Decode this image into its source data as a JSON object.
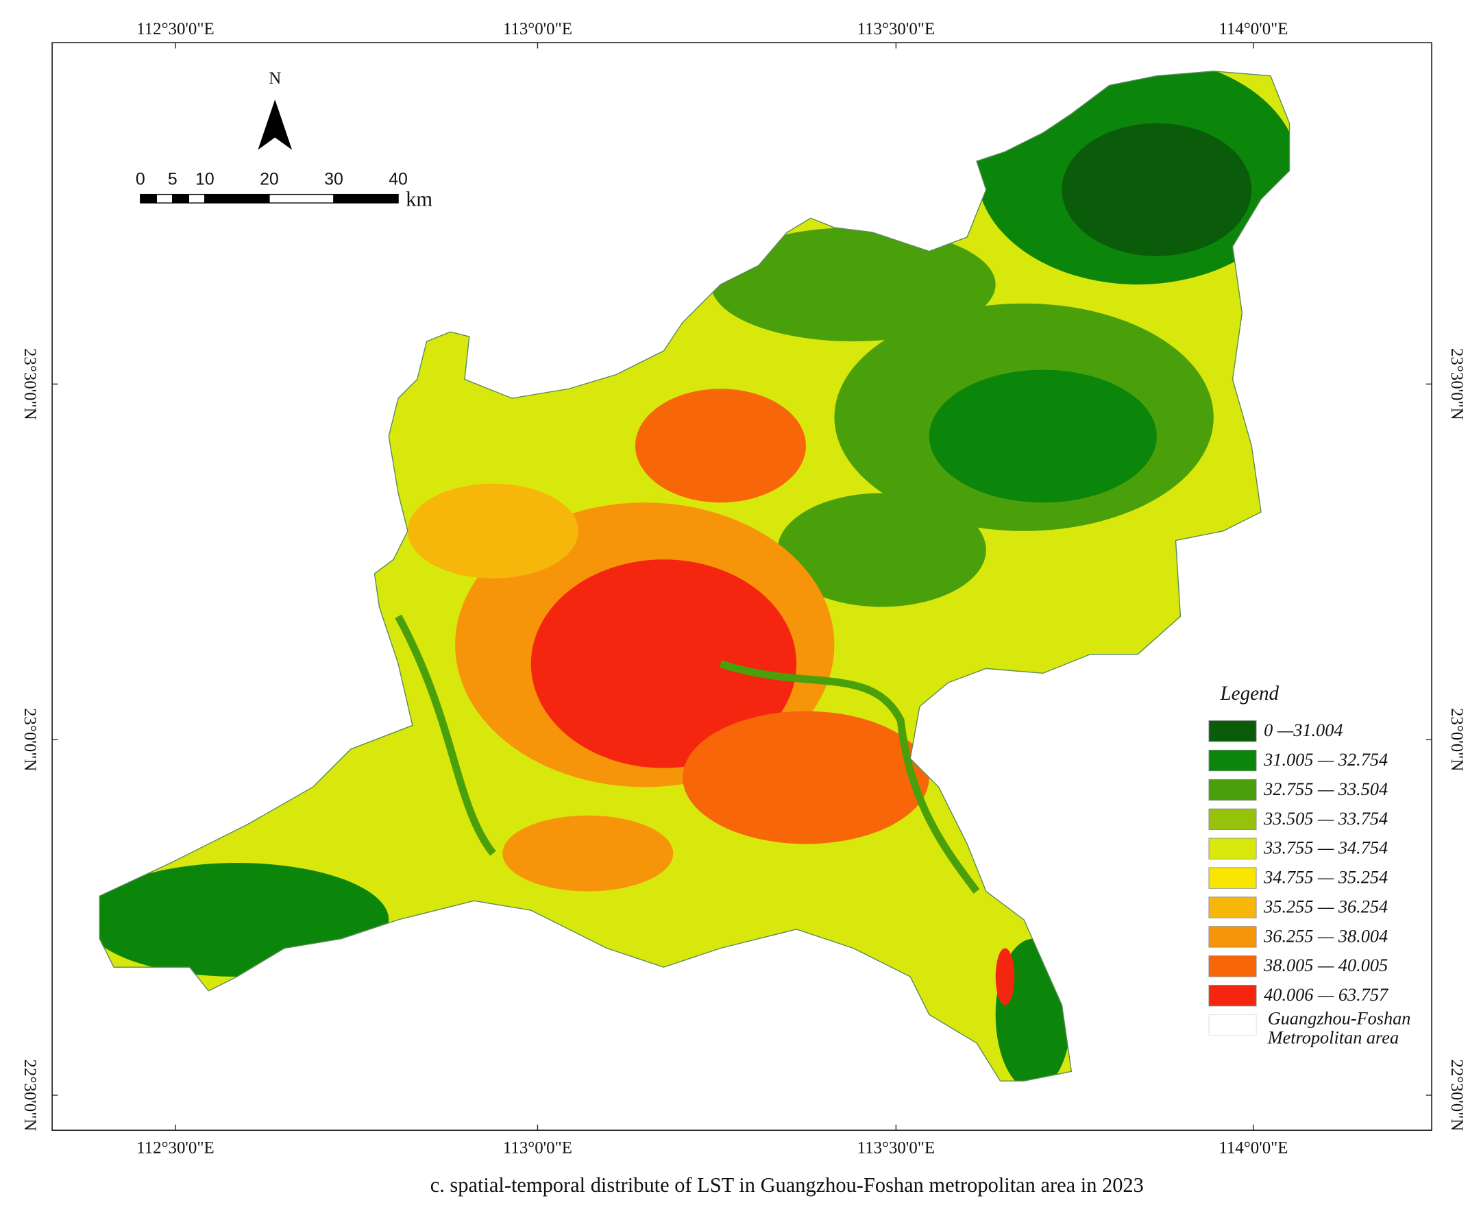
{
  "map": {
    "lon_labels": [
      "112°30'0\"E",
      "113°0'0\"E",
      "113°30'0\"E",
      "114°0'0\"E"
    ],
    "lat_labels": [
      "23°30'0\"N",
      "23°0'0\"N",
      "22°30'0\"N"
    ],
    "north_label": "N",
    "scale_bar": {
      "ticks": [
        0,
        5,
        10,
        20,
        30,
        40
      ],
      "unit": "km"
    },
    "legend": {
      "title": "Legend",
      "items": [
        {
          "label": "0 —31.004",
          "color": "#0a5c0a"
        },
        {
          "label": "31.005 — 32.754",
          "color": "#0b860b"
        },
        {
          "label": "32.755 — 33.504",
          "color": "#4aa00a"
        },
        {
          "label": "33.505 — 33.754",
          "color": "#97c20c"
        },
        {
          "label": "33.755 — 34.754",
          "color": "#d9e80c"
        },
        {
          "label": "34.755 — 35.254",
          "color": "#f8e600"
        },
        {
          "label": "35.255 — 36.254",
          "color": "#f6b70a"
        },
        {
          "label": "36.255 — 38.004",
          "color": "#f7950a"
        },
        {
          "label": "38.005 — 40.005",
          "color": "#f8660a"
        },
        {
          "label": "40.006 — 63.757",
          "color": "#f5260f"
        }
      ],
      "boundary_label": [
        "Guangzhou-Foshan",
        "Metropolitan area"
      ]
    },
    "caption": "c. spatial-temporal distribute of LST in Guangzhou-Foshan metropolitan area in 2023"
  }
}
